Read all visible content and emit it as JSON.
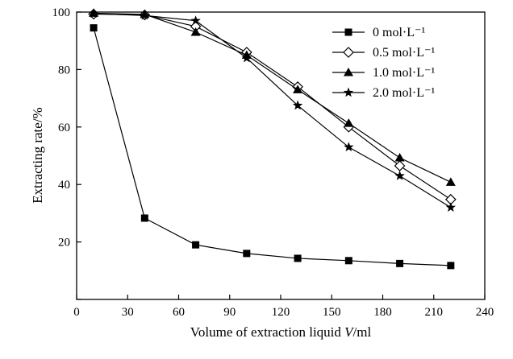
{
  "chart_data": {
    "type": "line",
    "xlabel": "Volume of extraction liquid V/ml",
    "xlabel_parts": {
      "prefix": "Volume of extraction liquid ",
      "var": "V",
      "suffix": "/ml"
    },
    "ylabel": "Extracting rate/%",
    "xlim": [
      0,
      240
    ],
    "ylim": [
      0,
      100
    ],
    "x_ticks": [
      0,
      30,
      60,
      90,
      120,
      150,
      180,
      210,
      240
    ],
    "y_ticks": [
      0,
      20,
      40,
      60,
      80,
      100
    ],
    "x_tick_labels": [
      "0",
      "30",
      "60",
      "90",
      "120",
      "150",
      "180",
      "210",
      "240"
    ],
    "y_tick_labels": [
      "",
      "20",
      "40",
      "60",
      "80",
      "100"
    ],
    "grid": false,
    "legend_position": "top-right",
    "x": [
      10,
      40,
      70,
      100,
      130,
      160,
      190,
      220
    ],
    "series": [
      {
        "name": "0 mol·L⁻¹",
        "marker": "square",
        "values": [
          94.5,
          28.3,
          19.0,
          16.0,
          14.3,
          13.5,
          12.5,
          11.8
        ]
      },
      {
        "name": "0.5 mol·L⁻¹",
        "marker": "diamond-open",
        "values": [
          99.3,
          99.0,
          95.0,
          86.0,
          74.0,
          60.0,
          46.5,
          34.8
        ]
      },
      {
        "name": "1.0 mol·L⁻¹",
        "marker": "triangle-filled",
        "values": [
          99.6,
          99.2,
          93.0,
          85.0,
          73.0,
          61.3,
          49.3,
          40.8
        ]
      },
      {
        "name": "2.0 mol·L⁻¹",
        "marker": "star-filled",
        "values": [
          99.5,
          98.8,
          97.0,
          84.0,
          67.5,
          53.0,
          43.0,
          32.0
        ]
      }
    ]
  }
}
